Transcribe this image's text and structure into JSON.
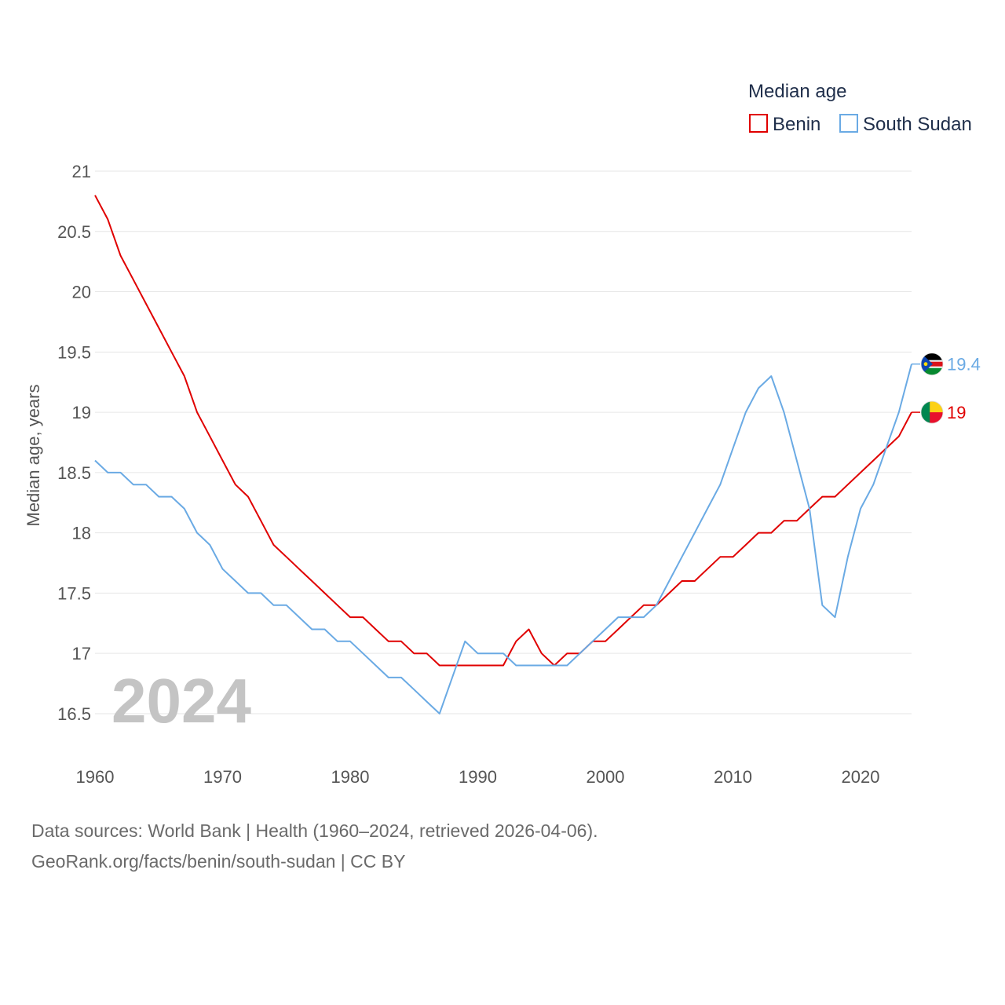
{
  "chart_data": {
    "type": "line",
    "ylabel": "Median age, years",
    "xlabel": "",
    "legend_title": "Median age",
    "legend_position": "top-right",
    "year_label": "2024",
    "xlim": [
      1960,
      2024
    ],
    "ylim": [
      16.2,
      21.0
    ],
    "x_ticks": [
      1960,
      1970,
      1980,
      1990,
      2000,
      2010,
      2020
    ],
    "y_ticks": [
      16.5,
      17,
      17.5,
      18,
      18.5,
      19,
      19.5,
      20,
      20.5,
      21
    ],
    "y_tick_labels": [
      "16.5",
      "17",
      "17.5",
      "18",
      "18.5",
      "19",
      "19.5",
      "20",
      "20.5",
      "21"
    ],
    "grid": true,
    "x": [
      1960,
      1961,
      1962,
      1963,
      1964,
      1965,
      1966,
      1967,
      1968,
      1969,
      1970,
      1971,
      1972,
      1973,
      1974,
      1975,
      1976,
      1977,
      1978,
      1979,
      1980,
      1981,
      1982,
      1983,
      1984,
      1985,
      1986,
      1987,
      1988,
      1989,
      1990,
      1991,
      1992,
      1993,
      1994,
      1995,
      1996,
      1997,
      1998,
      1999,
      2000,
      2001,
      2002,
      2003,
      2004,
      2005,
      2006,
      2007,
      2008,
      2009,
      2010,
      2011,
      2012,
      2013,
      2014,
      2015,
      2016,
      2017,
      2018,
      2019,
      2020,
      2021,
      2022,
      2023,
      2024
    ],
    "series": [
      {
        "name": "Benin",
        "color": "#e00000",
        "end_label": "19",
        "flag": "benin-flag",
        "values": [
          20.8,
          20.6,
          20.3,
          20.1,
          19.9,
          19.7,
          19.5,
          19.3,
          19.0,
          18.8,
          18.6,
          18.4,
          18.3,
          18.1,
          17.9,
          17.8,
          17.7,
          17.6,
          17.5,
          17.4,
          17.3,
          17.3,
          17.2,
          17.1,
          17.1,
          17.0,
          17.0,
          16.9,
          16.9,
          16.9,
          16.9,
          16.9,
          16.9,
          17.1,
          17.2,
          17.0,
          16.9,
          17.0,
          17.0,
          17.1,
          17.1,
          17.2,
          17.3,
          17.4,
          17.4,
          17.5,
          17.6,
          17.6,
          17.7,
          17.8,
          17.8,
          17.9,
          18.0,
          18.0,
          18.1,
          18.1,
          18.2,
          18.3,
          18.3,
          18.4,
          18.5,
          18.6,
          18.7,
          18.8,
          19.0
        ]
      },
      {
        "name": "South Sudan",
        "color": "#6aaae4",
        "end_label": "19.4",
        "flag": "south-sudan-flag",
        "values": [
          18.6,
          18.5,
          18.5,
          18.4,
          18.4,
          18.3,
          18.3,
          18.2,
          18.0,
          17.9,
          17.7,
          17.6,
          17.5,
          17.5,
          17.4,
          17.4,
          17.3,
          17.2,
          17.2,
          17.1,
          17.1,
          17.0,
          16.9,
          16.8,
          16.8,
          16.7,
          16.6,
          16.5,
          16.8,
          17.1,
          17.0,
          17.0,
          17.0,
          16.9,
          16.9,
          16.9,
          16.9,
          16.9,
          17.0,
          17.1,
          17.2,
          17.3,
          17.3,
          17.3,
          17.4,
          17.6,
          17.8,
          18.0,
          18.2,
          18.4,
          18.7,
          19.0,
          19.2,
          19.3,
          19.0,
          18.6,
          18.2,
          17.4,
          17.3,
          17.8,
          18.2,
          18.4,
          18.7,
          19.0,
          19.4
        ]
      }
    ]
  },
  "footer": {
    "sources": "Data sources: World Bank | Health (1960–2024, retrieved 2026-04-06).",
    "attribution": "GeoRank.org/facts/benin/south-sudan | CC BY"
  }
}
